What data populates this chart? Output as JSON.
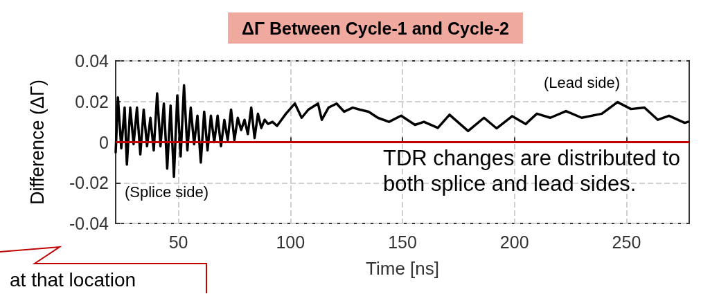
{
  "chart_data": {
    "type": "line",
    "title": "ΔΓ Between Cycle-1 and Cycle-2",
    "xlabel": "Time [ns]",
    "ylabel": "Difference (ΔΓ)",
    "xlim": [
      22,
      278
    ],
    "xticks": [
      50,
      100,
      150,
      200,
      250
    ],
    "ylim": [
      -0.04,
      0.04
    ],
    "yticks": [
      -0.04,
      -0.02,
      0,
      0.02,
      0.04
    ],
    "grid": true,
    "marker": "none",
    "line_style": "solid",
    "series": [
      {
        "color": "#000000",
        "x": [
          22,
          23,
          24.5,
          26,
          27,
          28.5,
          30,
          31.5,
          33,
          34.5,
          36,
          37.5,
          39,
          40.5,
          42,
          43.5,
          45,
          46.5,
          48,
          49.5,
          51,
          52.5,
          54,
          55.5,
          57,
          58.5,
          60,
          61.5,
          63,
          64.5,
          66,
          67.5,
          69,
          70.5,
          72,
          73.5,
          75,
          76.5,
          78,
          79.5,
          81,
          82.5,
          84,
          85.5,
          87,
          88.5,
          90,
          92,
          94,
          96,
          98,
          102,
          105,
          108,
          112.3,
          114,
          117,
          120.6,
          124,
          127.8,
          131,
          134.9,
          139,
          144,
          149.4,
          155.6,
          159.6,
          165.8,
          171,
          179.3,
          186.4,
          192,
          199,
          205,
          210,
          216,
          223,
          230,
          239,
          246,
          252,
          258,
          264,
          269,
          276,
          277.5
        ],
        "values": [
          -0.005,
          0.022,
          -0.003,
          0.017,
          -0.011,
          0.017,
          -0.001,
          0.017,
          -0.006,
          0.016,
          -0.002,
          0.012,
          -0.004,
          0.024,
          -0.002,
          0.019,
          -0.013,
          0.018,
          -0.017,
          0.023,
          -0.007,
          0.028,
          -0.004,
          0.017,
          -0.001,
          0.013,
          -0.01,
          0.015,
          -0.004,
          0.013,
          0.0,
          0.013,
          -0.002,
          0.011,
          0.001,
          0.016,
          0.001,
          0.012,
          0.006,
          0.011,
          0.004,
          0.017,
          0.002,
          0.014,
          0.007,
          0.011,
          0.009,
          0.01,
          0.008,
          0.011,
          0.014,
          0.019,
          0.012,
          0.016,
          0.019,
          0.011,
          0.017,
          0.019,
          0.015,
          0.017,
          0.016,
          0.015,
          0.012,
          0.01,
          0.013,
          0.0085,
          0.01,
          0.007,
          0.0135,
          0.0055,
          0.012,
          0.0068,
          0.0128,
          0.0089,
          0.014,
          0.012,
          0.0153,
          0.012,
          0.014,
          0.0197,
          0.0163,
          0.017,
          0.011,
          0.013,
          0.0095,
          0.01
        ]
      }
    ],
    "ref_lines": [
      {
        "axis": "y",
        "value": 0,
        "color": "#c00000"
      }
    ],
    "annotations": [
      "(Lead side)",
      "(Splice side)",
      "TDR changes are distributed to\nboth splice and lead sides.",
      "at that location"
    ]
  }
}
